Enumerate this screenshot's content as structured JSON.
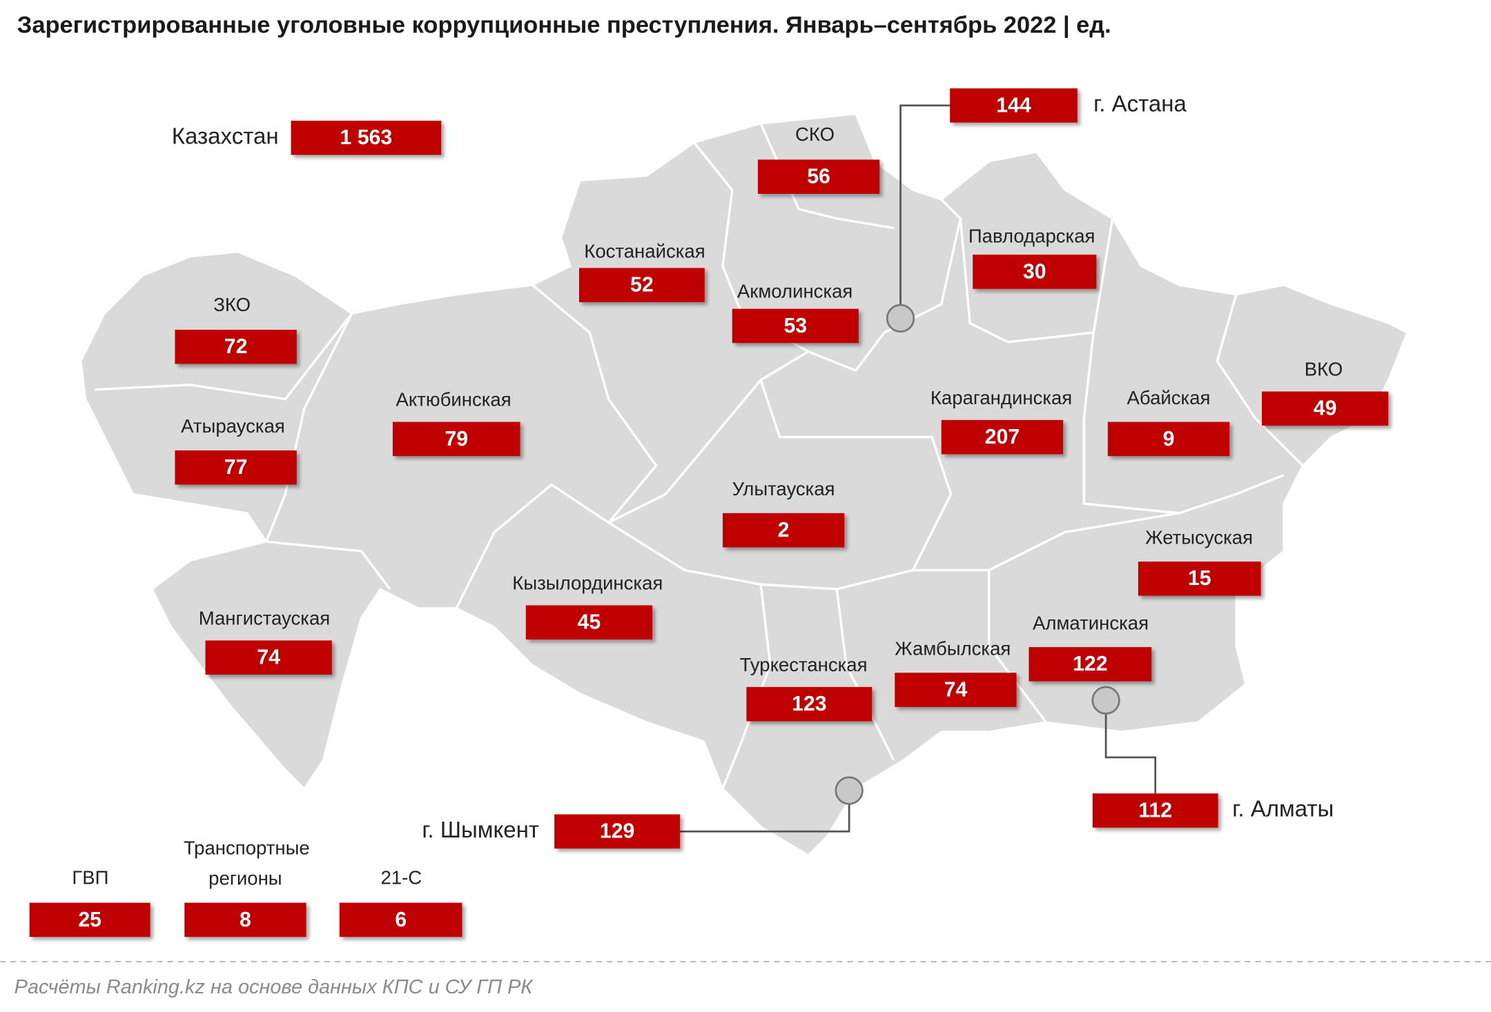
{
  "title": "Зарегистрированные уголовные коррупционные преступления. Январь–сентябрь 2022 | ед.",
  "regions": [
    {
      "label": "Казахстан",
      "value": 1563,
      "value_label": "1 563"
    },
    {
      "label": "СКО",
      "value": 56
    },
    {
      "label": "г. Астана",
      "value": 144
    },
    {
      "label": "Павлодарская",
      "value": 30
    },
    {
      "label": "Костанайская",
      "value": 52
    },
    {
      "label": "Акмолинская",
      "value": 53
    },
    {
      "label": "ЗКО",
      "value": 72
    },
    {
      "label": "Актюбинская",
      "value": 79
    },
    {
      "label": "Карагандинская",
      "value": 207
    },
    {
      "label": "Абайская",
      "value": 9
    },
    {
      "label": "ВКО",
      "value": 49
    },
    {
      "label": "Атырауская",
      "value": 77
    },
    {
      "label": "Улытауская",
      "value": 2
    },
    {
      "label": "Жетысуская",
      "value": 15
    },
    {
      "label": "Кызылординская",
      "value": 45
    },
    {
      "label": "Мангистауская",
      "value": 74
    },
    {
      "label": "Алматинская",
      "value": 122
    },
    {
      "label": "Жамбылская",
      "value": 74
    },
    {
      "label": "Туркестанская",
      "value": 123
    },
    {
      "label": "г. Алматы",
      "value": 112
    },
    {
      "label": "г. Шымкент",
      "value": 129
    },
    {
      "label": "ГВП",
      "value": 25
    },
    {
      "label": "Транспортные регионы",
      "value": 8
    },
    {
      "label": "21-С",
      "value": 6
    }
  ],
  "source": "Расчёты Ranking.kz на основе данных КПС и СУ ГП РК"
}
